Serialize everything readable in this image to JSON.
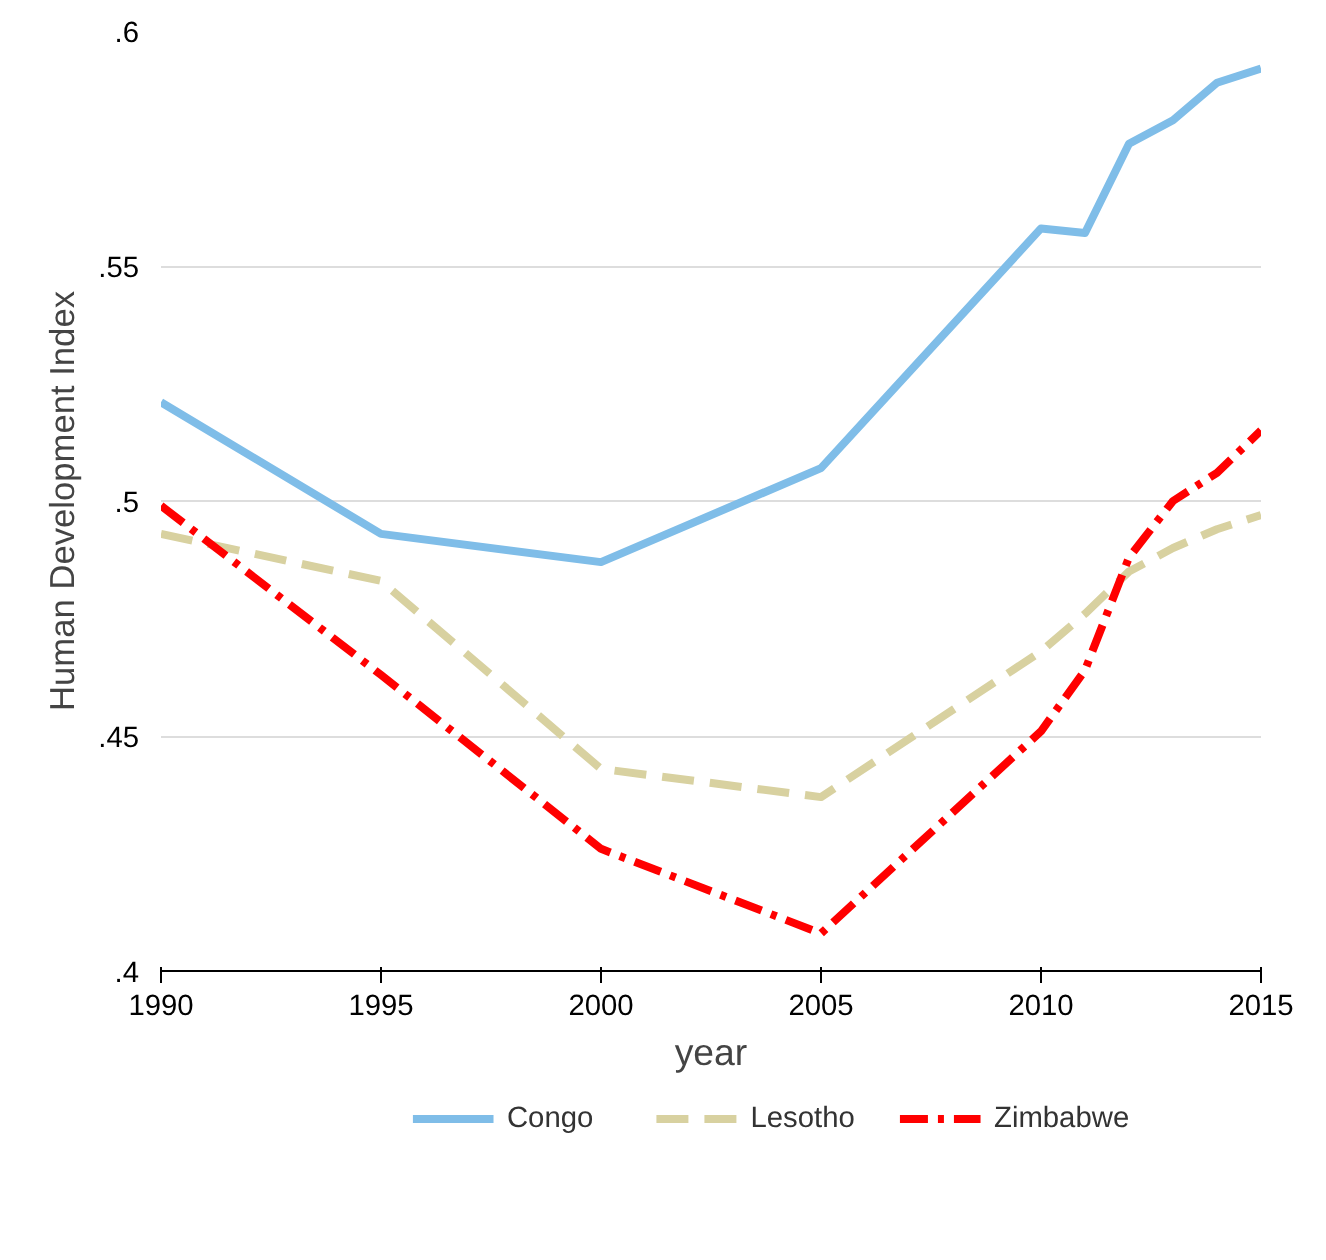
{
  "chart_data": {
    "type": "line",
    "xlabel": "year",
    "ylabel": "Human Development Index",
    "xlim": [
      1990,
      2015
    ],
    "ylim": [
      0.4,
      0.6
    ],
    "xticks": [
      1990,
      1995,
      2000,
      2005,
      2010,
      2015
    ],
    "yticks": [
      {
        "value": 0.4,
        "label": ".4"
      },
      {
        "value": 0.45,
        "label": ".45"
      },
      {
        "value": 0.5,
        "label": ".5"
      },
      {
        "value": 0.55,
        "label": ".55"
      },
      {
        "value": 0.6,
        "label": ".6"
      }
    ],
    "grid": "y",
    "legend": "bottom",
    "series": [
      {
        "name": "Congo",
        "color": "#7fbde8",
        "line_style": "solid",
        "x": [
          1990,
          1995,
          2000,
          2005,
          2010,
          2011,
          2012,
          2013,
          2014,
          2015
        ],
        "values": [
          0.521,
          0.493,
          0.487,
          0.507,
          0.558,
          0.557,
          0.576,
          0.581,
          0.589,
          0.592
        ]
      },
      {
        "name": "Lesotho",
        "color": "#d8d1a0",
        "line_style": "dashed",
        "x": [
          1990,
          1995,
          2000,
          2005,
          2010,
          2011,
          2012,
          2013,
          2014,
          2015
        ],
        "values": [
          0.493,
          0.483,
          0.443,
          0.437,
          0.468,
          0.476,
          0.485,
          0.49,
          0.494,
          0.497
        ]
      },
      {
        "name": "Zimbabwe",
        "color": "#ff0000",
        "line_style": "dashdot",
        "x": [
          1990,
          1995,
          2000,
          2005,
          2010,
          2011,
          2012,
          2013,
          2014,
          2015
        ],
        "values": [
          0.499,
          0.463,
          0.426,
          0.408,
          0.451,
          0.464,
          0.488,
          0.5,
          0.506,
          0.515
        ]
      }
    ]
  }
}
